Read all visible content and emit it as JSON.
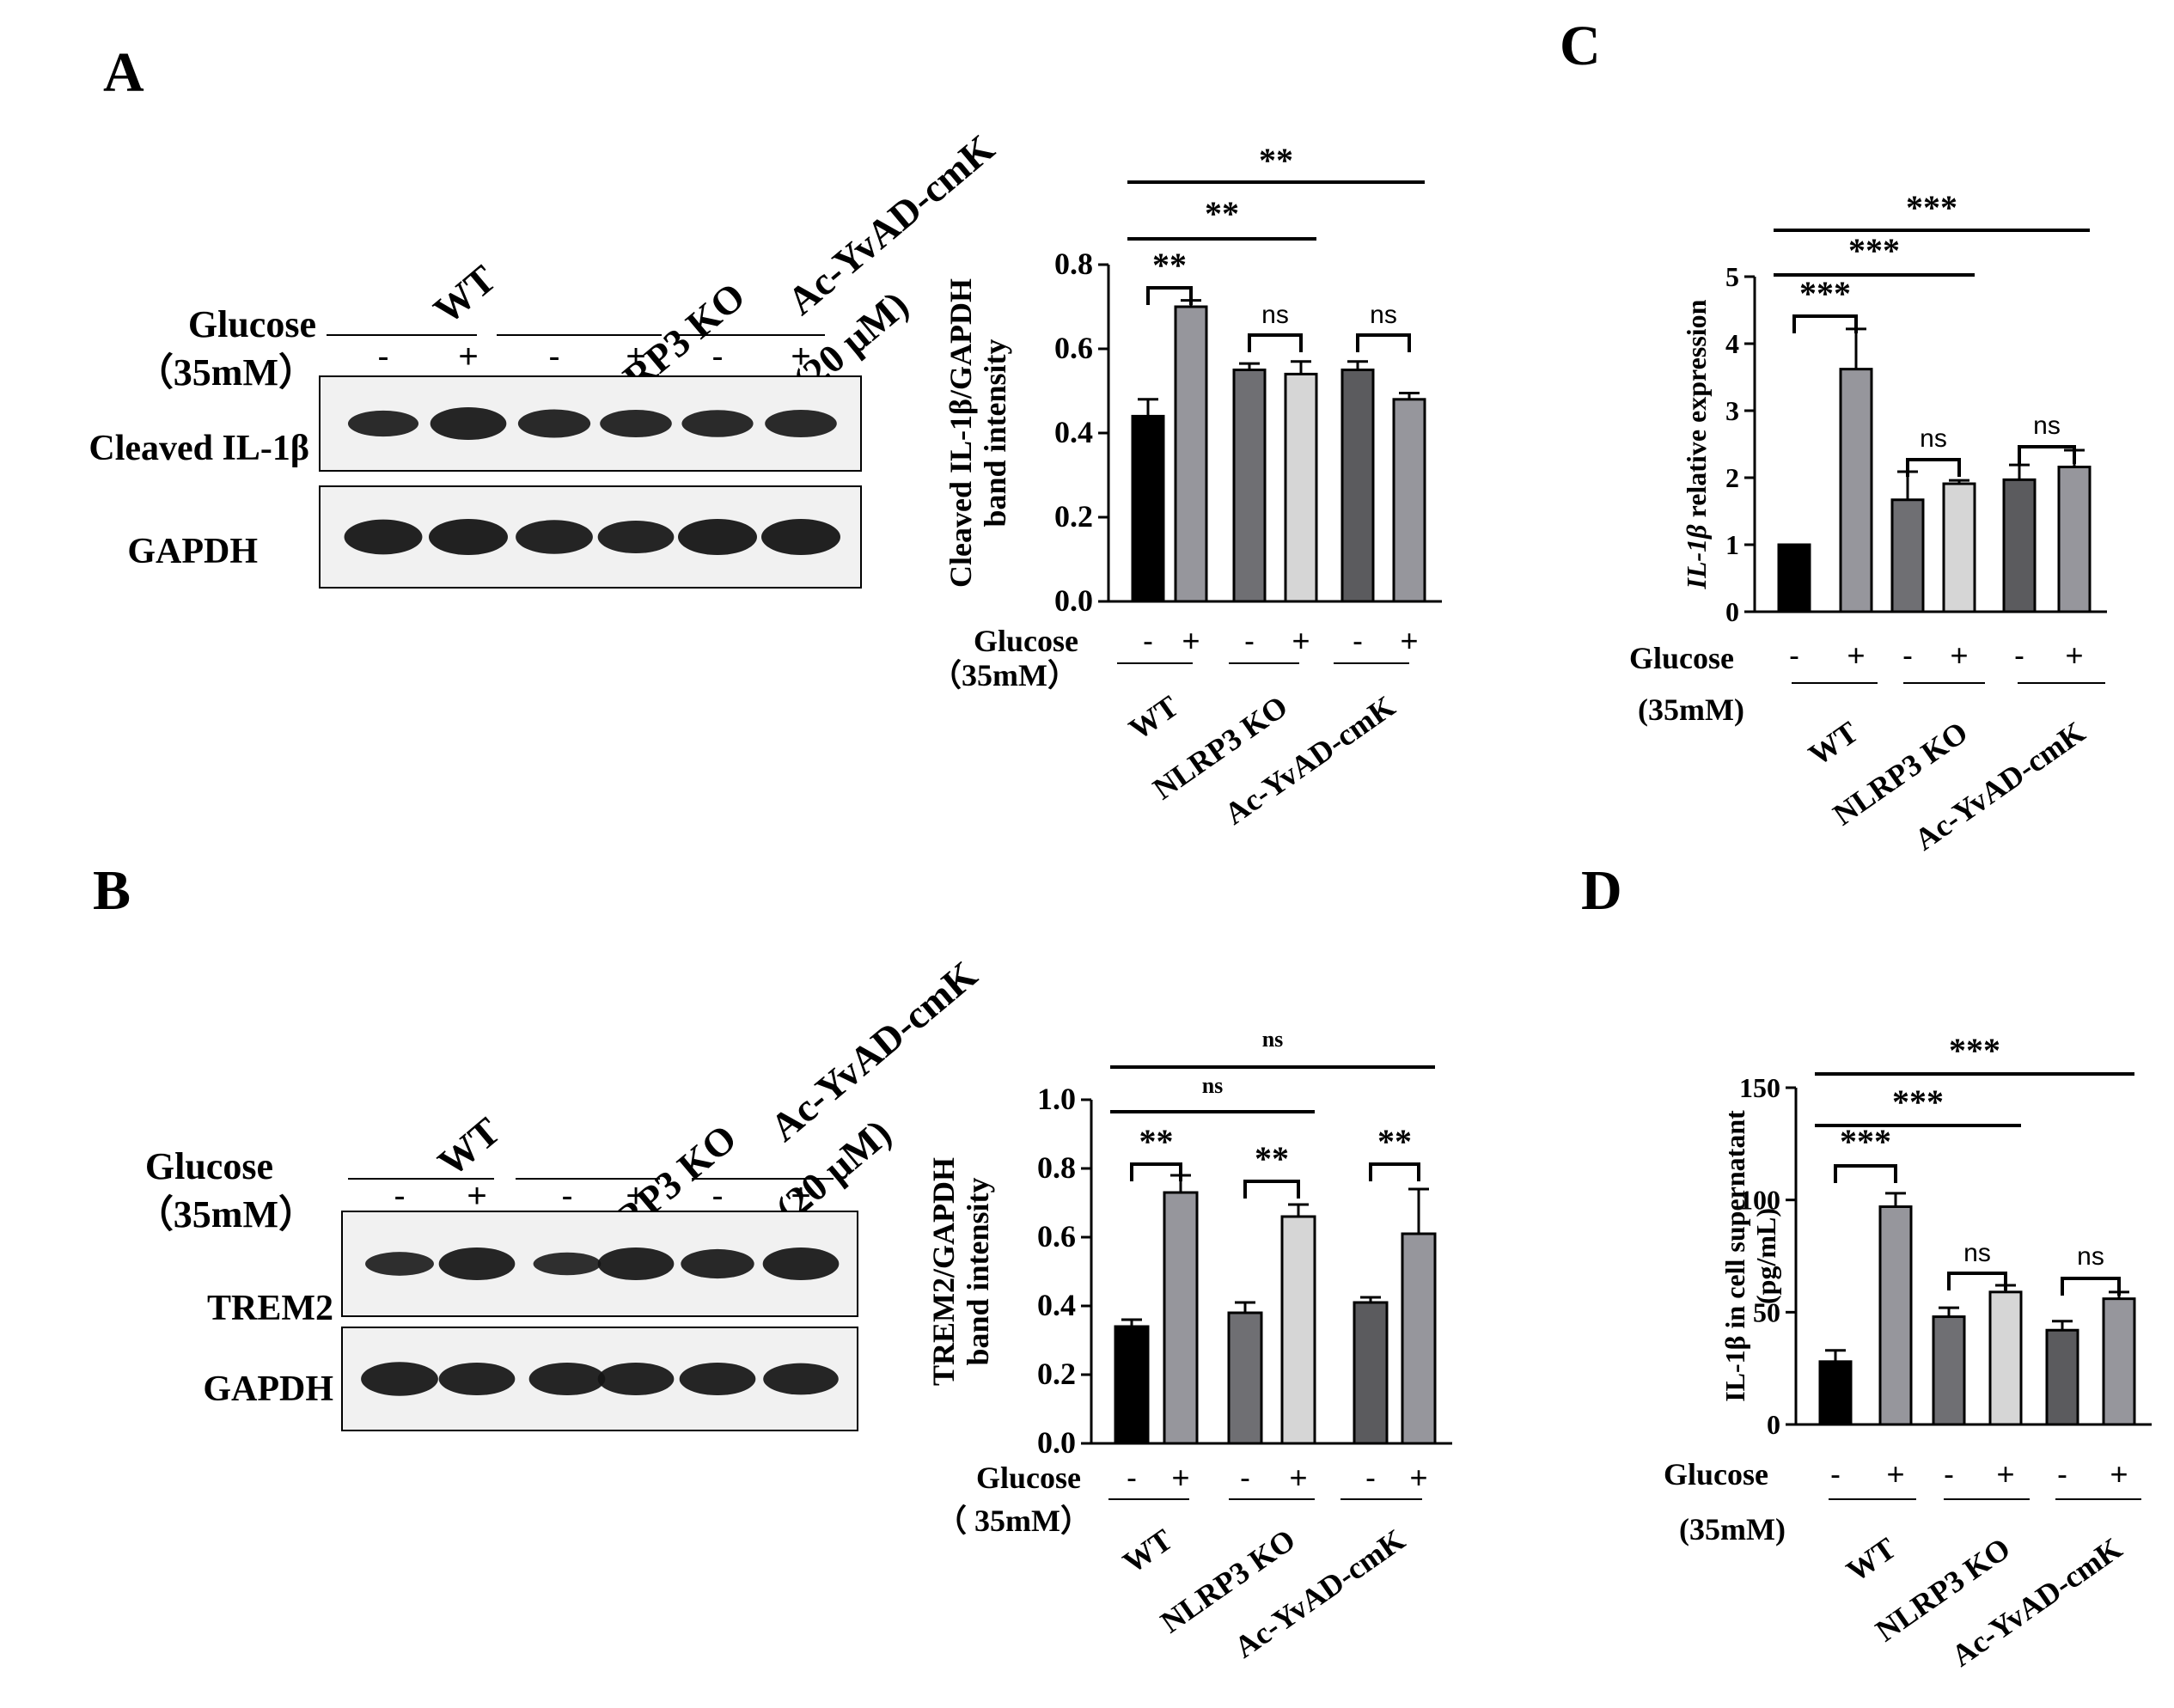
{
  "panels": {
    "A": {
      "letter": "A",
      "blot": {
        "group_labels": [
          "WT",
          "NLRP3 KO",
          "Ac-YvAD-cmK",
          "(20 μM)"
        ],
        "glucose_label": "Glucose",
        "conc_label": "（35mM）",
        "signs": [
          "-",
          "+",
          "-",
          "+",
          "-",
          "+"
        ],
        "rows": [
          {
            "label": "Cleaved IL-1β",
            "intensity": [
              0.55,
              0.85,
              0.65,
              0.62,
              0.6,
              0.62
            ]
          },
          {
            "label": "GAPDH",
            "intensity": [
              0.95,
              1.0,
              0.9,
              0.85,
              1.0,
              1.0
            ]
          }
        ]
      }
    },
    "B": {
      "letter": "B",
      "blot": {
        "group_labels": [
          "WT",
          "NLRP3 KO",
          "Ac-YvAD-cmK",
          "(20 μM)"
        ],
        "glucose_label": "Glucose",
        "conc_label": "（35mM）",
        "signs": [
          "-",
          "+",
          "-",
          "+",
          "-",
          "+"
        ],
        "rows": [
          {
            "label": "TREM2",
            "intensity": [
              0.45,
              0.85,
              0.4,
              0.85,
              0.7,
              0.85
            ]
          },
          {
            "label": "GAPDH",
            "intensity": [
              0.9,
              0.85,
              0.85,
              0.85,
              0.85,
              0.8
            ]
          }
        ]
      }
    },
    "C": {
      "letter": "C"
    },
    "D": {
      "letter": "D"
    }
  },
  "chart_data": [
    {
      "id": "A",
      "type": "bar",
      "ylabel_lines": [
        "Cleaved IL-1β/GAPDH",
        "band intensity"
      ],
      "ylim": [
        0,
        0.8
      ],
      "yticks": [
        "0.0",
        "0.2",
        "0.4",
        "0.6",
        "0.8"
      ],
      "values": [
        0.44,
        0.7,
        0.55,
        0.54,
        0.55,
        0.48
      ],
      "errors": [
        0.04,
        0.015,
        0.015,
        0.03,
        0.02,
        0.015
      ],
      "colors": [
        "#000000",
        "#96969c",
        "#6f6f73",
        "#d6d6d6",
        "#5b5b5e",
        "#96969c"
      ],
      "signs": [
        "-",
        "+",
        "-",
        "+",
        "-",
        "+"
      ],
      "glucose_label": "Glucose",
      "conc_label": "（35mM）",
      "groups": [
        "WT",
        "NLRP3 KO",
        "Ac-YvAD-cmK"
      ],
      "brackets": [
        {
          "from": 0,
          "to": 1,
          "label": "**"
        },
        {
          "from": 2,
          "to": 3,
          "label": "ns"
        },
        {
          "from": 4,
          "to": 5,
          "label": "ns"
        }
      ],
      "lines": [
        {
          "from": 0,
          "to": 3,
          "label": "**"
        },
        {
          "from": 0,
          "to": 5,
          "label": "**"
        }
      ]
    },
    {
      "id": "B",
      "type": "bar",
      "ylabel_lines": [
        "TREM2/GAPDH",
        "band intensity"
      ],
      "ylim": [
        0,
        1.0
      ],
      "yticks": [
        "0.0",
        "0.2",
        "0.4",
        "0.6",
        "0.8",
        "1.0"
      ],
      "values": [
        0.34,
        0.73,
        0.38,
        0.66,
        0.41,
        0.61
      ],
      "errors": [
        0.02,
        0.05,
        0.03,
        0.035,
        0.015,
        0.13
      ],
      "colors": [
        "#000000",
        "#96969c",
        "#6f6f73",
        "#d6d6d6",
        "#5b5b5e",
        "#96969c"
      ],
      "signs": [
        "-",
        "+",
        "-",
        "+",
        "-",
        "+"
      ],
      "glucose_label": "Glucose",
      "conc_label": "（ 35mM）",
      "groups": [
        "WT",
        "NLRP3 KO",
        "Ac-YvAD-cmK"
      ],
      "brackets": [
        {
          "from": 0,
          "to": 1,
          "label": "**"
        },
        {
          "from": 2,
          "to": 3,
          "label": "**"
        },
        {
          "from": 4,
          "to": 5,
          "label": "**"
        }
      ],
      "lines": [
        {
          "from": 0,
          "to": 3,
          "label": "ns"
        },
        {
          "from": 0,
          "to": 5,
          "label": "ns"
        }
      ]
    },
    {
      "id": "C",
      "type": "bar",
      "ylabel_italic": "IL-1β",
      "ylabel_rest": " relative expression",
      "ylim": [
        0,
        5
      ],
      "yticks": [
        "0",
        "1",
        "2",
        "3",
        "4",
        "5"
      ],
      "values": [
        1.0,
        3.62,
        1.67,
        1.91,
        1.97,
        2.16
      ],
      "errors": [
        0.0,
        0.6,
        0.42,
        0.05,
        0.22,
        0.25
      ],
      "colors": [
        "#000000",
        "#96969c",
        "#6f6f73",
        "#d6d6d6",
        "#5b5b5e",
        "#96969c"
      ],
      "signs": [
        "-",
        "+",
        "-",
        "+",
        "-",
        "+"
      ],
      "glucose_label": "Glucose",
      "conc_label": "(35mM)",
      "groups": [
        "WT",
        "NLRP3 KO",
        "Ac-YvAD-cmK"
      ],
      "brackets": [
        {
          "from": 0,
          "to": 1,
          "label": "***"
        },
        {
          "from": 2,
          "to": 3,
          "label": "ns"
        },
        {
          "from": 4,
          "to": 5,
          "label": "ns"
        }
      ],
      "lines": [
        {
          "from": 0,
          "to": 3,
          "label": "***"
        },
        {
          "from": 0,
          "to": 5,
          "label": "***"
        }
      ]
    },
    {
      "id": "D",
      "type": "bar",
      "ylabel_lines": [
        "IL-1β in cell supernatant",
        "(pg/mL)"
      ],
      "ylim": [
        0,
        150
      ],
      "yticks": [
        "0",
        "50",
        "100",
        "150"
      ],
      "values": [
        28,
        97,
        48,
        59,
        42,
        56
      ],
      "errors": [
        5,
        6,
        4,
        3,
        4,
        3
      ],
      "colors": [
        "#000000",
        "#96969c",
        "#6f6f73",
        "#d6d6d6",
        "#5b5b5e",
        "#96969c"
      ],
      "signs": [
        "-",
        "+",
        "-",
        "+",
        "-",
        "+"
      ],
      "glucose_label": "Glucose",
      "conc_label": "(35mM)",
      "groups": [
        "WT",
        "NLRP3 KO",
        "Ac-YvAD-cmK"
      ],
      "brackets": [
        {
          "from": 0,
          "to": 1,
          "label": "***"
        },
        {
          "from": 2,
          "to": 3,
          "label": "ns"
        },
        {
          "from": 4,
          "to": 5,
          "label": "ns"
        }
      ],
      "lines": [
        {
          "from": 0,
          "to": 3,
          "label": "***"
        },
        {
          "from": 0,
          "to": 5,
          "label": "***"
        }
      ]
    }
  ]
}
